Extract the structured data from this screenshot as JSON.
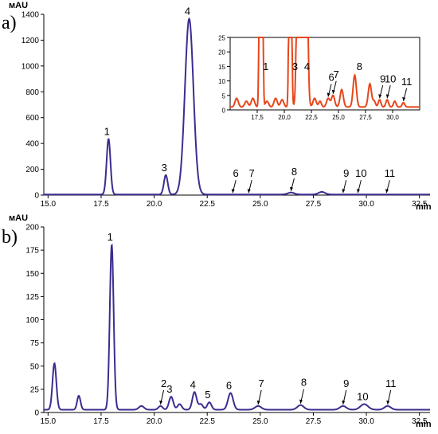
{
  "panels": {
    "a_label": "a)",
    "b_label": "b)"
  },
  "colors": {
    "trace": "#3a2d8f",
    "inset_trace": "#e8461a",
    "axis": "#000000"
  },
  "chart_data": [
    {
      "type": "line",
      "panel": "a",
      "ylabel": "мAU",
      "xlabel": "min",
      "xlim": [
        14.8,
        33.0
      ],
      "ylim": [
        0,
        1400
      ],
      "x_ticks": [
        15.0,
        17.5,
        20.0,
        22.5,
        25.0,
        27.5,
        30.0,
        32.5
      ],
      "x_tick_labels": [
        "15.0",
        "17.5",
        "20.0",
        "22.5",
        "25.0",
        "27.5",
        "30.0",
        "32.5"
      ],
      "y_ticks": [
        0,
        200,
        400,
        600,
        800,
        1000,
        1200,
        1400
      ],
      "y_tick_labels": [
        "0",
        "200",
        "400",
        "600",
        "800",
        "1000",
        "1200",
        "1400"
      ],
      "baseline": 5,
      "peaks": [
        {
          "label": "1",
          "x": 17.85,
          "y": 430,
          "w": 0.09,
          "arrow": false
        },
        {
          "label": "3",
          "x": 20.55,
          "y": 150,
          "w": 0.09,
          "arrow": false
        },
        {
          "label": "4",
          "x": 21.65,
          "y": 1360,
          "w": 0.2,
          "arrow": false
        },
        {
          "label": "6",
          "x": 23.7,
          "y": 0,
          "w": 0.1,
          "arrow": true
        },
        {
          "label": "7",
          "x": 24.45,
          "y": 0,
          "w": 0.1,
          "arrow": true
        },
        {
          "label": "8",
          "x": 26.45,
          "y": 15,
          "w": 0.15,
          "arrow": true
        },
        {
          "label": "9",
          "x": 28.9,
          "y": 0,
          "w": 0.1,
          "arrow": true
        },
        {
          "label": "10",
          "x": 29.6,
          "y": 0,
          "w": 0.1,
          "arrow": true
        },
        {
          "label": "11",
          "x": 30.95,
          "y": 0,
          "w": 0.1,
          "arrow": true
        }
      ],
      "extra_bumps": [
        {
          "x": 27.9,
          "y": 20,
          "w": 0.15
        }
      ]
    },
    {
      "type": "line",
      "panel": "a-inset",
      "xlim": [
        15.0,
        32.5
      ],
      "ylim": [
        0,
        25
      ],
      "x_ticks": [
        17.5,
        20.0,
        22.5,
        25.0,
        27.5,
        30.0
      ],
      "x_tick_labels": [
        "17,5",
        "20,0",
        "22,5",
        "25,0",
        "27,5",
        "30,0"
      ],
      "y_ticks": [
        0,
        5,
        10,
        15,
        20,
        25
      ],
      "y_tick_labels": [
        "0",
        "5",
        "10",
        "15",
        "20",
        "25"
      ],
      "baseline": 1,
      "peaks": [
        {
          "label": "1",
          "x": 17.85,
          "y": 430,
          "w": 0.09,
          "arrow": false
        },
        {
          "label": "3",
          "x": 20.55,
          "y": 150,
          "w": 0.09,
          "arrow": false
        },
        {
          "label": "4",
          "x": 21.65,
          "y": 1360,
          "w": 0.2,
          "arrow": false
        },
        {
          "label": "6",
          "x": 24.05,
          "y": 3,
          "w": 0.15,
          "arrow": true
        },
        {
          "label": "7",
          "x": 24.5,
          "y": 4,
          "w": 0.15,
          "arrow": true
        },
        {
          "label": "8",
          "x": 26.5,
          "y": 11,
          "w": 0.15,
          "arrow": false
        },
        {
          "label": "9",
          "x": 28.8,
          "y": 2.5,
          "w": 0.12,
          "arrow": true
        },
        {
          "label": "10",
          "x": 29.5,
          "y": 2.5,
          "w": 0.12,
          "arrow": true
        },
        {
          "label": "11",
          "x": 31.0,
          "y": 1.5,
          "w": 0.12,
          "arrow": true
        }
      ],
      "extra_bumps": [
        {
          "x": 15.6,
          "y": 3,
          "w": 0.15
        },
        {
          "x": 16.5,
          "y": 2,
          "w": 0.15
        },
        {
          "x": 17.1,
          "y": 3,
          "w": 0.15
        },
        {
          "x": 18.4,
          "y": 2,
          "w": 0.15
        },
        {
          "x": 19.2,
          "y": 3,
          "w": 0.15
        },
        {
          "x": 19.8,
          "y": 2.5,
          "w": 0.15
        },
        {
          "x": 22.8,
          "y": 3,
          "w": 0.15
        },
        {
          "x": 23.3,
          "y": 2,
          "w": 0.12
        },
        {
          "x": 25.3,
          "y": 6,
          "w": 0.15
        },
        {
          "x": 27.9,
          "y": 8,
          "w": 0.15
        },
        {
          "x": 28.3,
          "y": 2,
          "w": 0.12
        },
        {
          "x": 30.2,
          "y": 2,
          "w": 0.12
        }
      ]
    },
    {
      "type": "line",
      "panel": "b",
      "ylabel": "мAU",
      "xlabel": "min",
      "xlim": [
        14.8,
        33.0
      ],
      "ylim": [
        0,
        200
      ],
      "x_ticks": [
        15.0,
        17.5,
        20.0,
        22.5,
        25.0,
        27.5,
        30.0,
        32.5
      ],
      "x_tick_labels": [
        "15.0",
        "17.5",
        "20.0",
        "22.5",
        "25.0",
        "27.5",
        "30.0",
        "32.5"
      ],
      "y_ticks": [
        0,
        25,
        50,
        75,
        100,
        125,
        150,
        175,
        200
      ],
      "y_tick_labels": [
        "0",
        "25",
        "50",
        "75",
        "100",
        "125",
        "150",
        "175",
        "200"
      ],
      "baseline": 3,
      "peaks": [
        {
          "label": "1",
          "x": 18.0,
          "y": 178,
          "w": 0.09,
          "arrow": false
        },
        {
          "label": "2",
          "x": 20.3,
          "y": 4,
          "w": 0.1,
          "arrow": true
        },
        {
          "label": "3",
          "x": 20.8,
          "y": 14,
          "w": 0.1,
          "arrow": false
        },
        {
          "label": "4",
          "x": 21.9,
          "y": 19,
          "w": 0.1,
          "arrow": false
        },
        {
          "label": "5",
          "x": 22.6,
          "y": 8,
          "w": 0.1,
          "arrow": false
        },
        {
          "label": "6",
          "x": 23.6,
          "y": 18,
          "w": 0.12,
          "arrow": false
        },
        {
          "label": "7",
          "x": 24.9,
          "y": 4,
          "w": 0.15,
          "arrow": true
        },
        {
          "label": "8",
          "x": 26.9,
          "y": 5,
          "w": 0.15,
          "arrow": true
        },
        {
          "label": "9",
          "x": 28.9,
          "y": 4,
          "w": 0.15,
          "arrow": true
        },
        {
          "label": "10",
          "x": 29.9,
          "y": 6,
          "w": 0.18,
          "arrow": false
        },
        {
          "label": "11",
          "x": 31.0,
          "y": 4,
          "w": 0.15,
          "arrow": true
        }
      ],
      "extra_bumps": [
        {
          "x": 15.3,
          "y": 50,
          "w": 0.09
        },
        {
          "x": 16.45,
          "y": 15,
          "w": 0.08
        },
        {
          "x": 19.4,
          "y": 4,
          "w": 0.12
        },
        {
          "x": 21.2,
          "y": 6,
          "w": 0.1
        },
        {
          "x": 22.2,
          "y": 6,
          "w": 0.1
        }
      ]
    }
  ]
}
